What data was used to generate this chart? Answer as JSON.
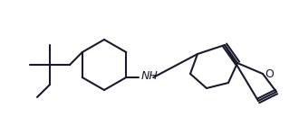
{
  "line_color": "#1a1a2e",
  "line_width": 1.5,
  "bg_color": "#ffffff",
  "nh_label": "NH",
  "o_label": "O",
  "nh_fontsize": 9,
  "o_fontsize": 9,
  "figsize": [
    3.3,
    1.5
  ],
  "dpi": 100
}
